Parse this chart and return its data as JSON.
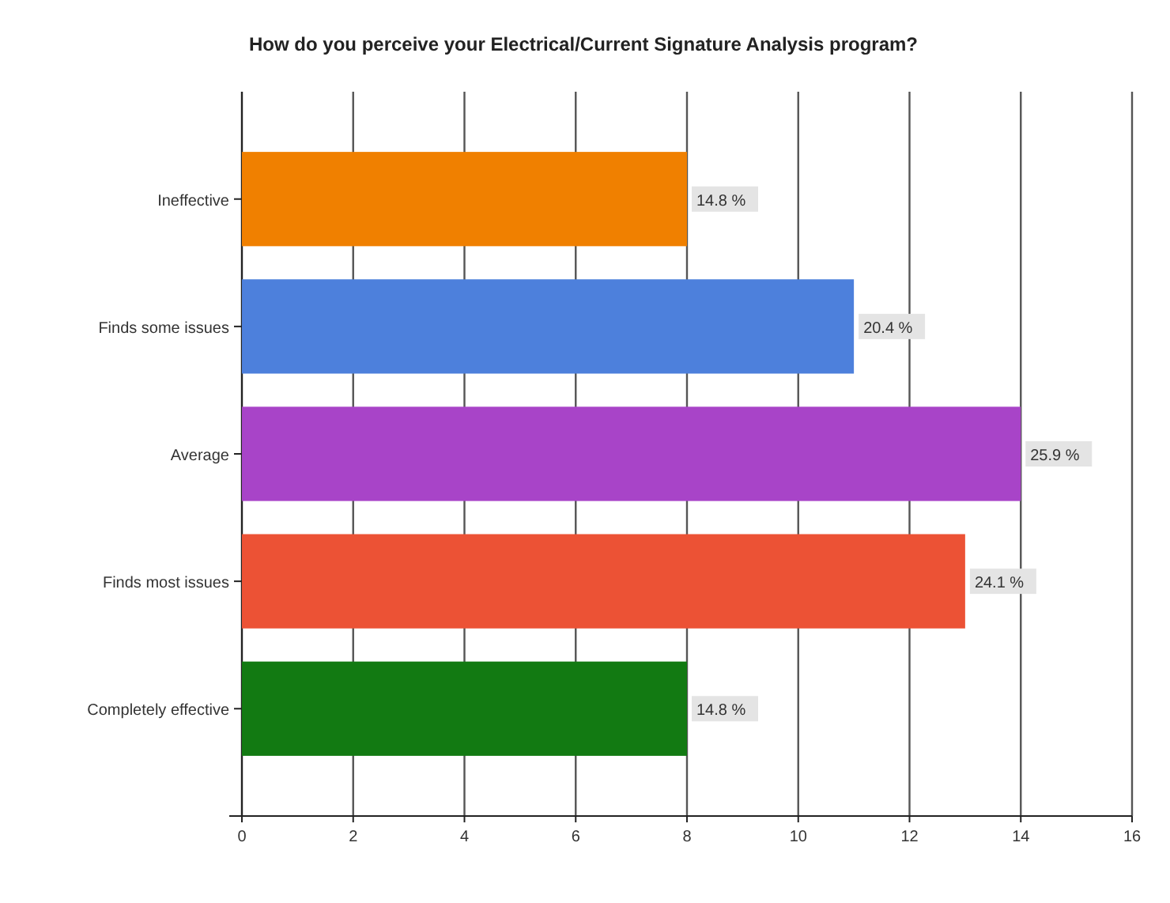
{
  "chart_data": {
    "type": "bar",
    "orientation": "horizontal",
    "title": "How do you perceive your Electrical/Current Signature Analysis program?",
    "categories": [
      "Ineffective",
      "Finds some issues",
      "Average",
      "Finds most issues",
      "Completely effective"
    ],
    "values": [
      8,
      11,
      14,
      13,
      8
    ],
    "colors": [
      "#f08000",
      "#4d80dc",
      "#a844c8",
      "#ec5235",
      "#127a12"
    ],
    "annotations": [
      {
        "text": "14.8 %",
        "x": 8,
        "y": "Ineffective"
      },
      {
        "text": "20.4 %",
        "x": 11,
        "y": "Finds some issues"
      },
      {
        "text": "25.9 %",
        "x": 14,
        "y": "Average"
      },
      {
        "text": "24.1 %",
        "x": 13,
        "y": "Finds most issues"
      },
      {
        "text": "14.8 %",
        "x": 8,
        "y": "Completely effective"
      }
    ],
    "xlim": [
      0,
      16
    ],
    "xticks": [
      0,
      2,
      4,
      6,
      8,
      10,
      12,
      14,
      16
    ],
    "grid": "x"
  }
}
